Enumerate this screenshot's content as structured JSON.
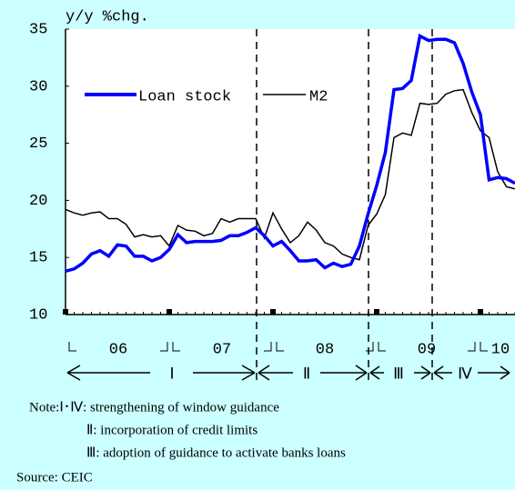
{
  "chart_data": {
    "type": "line",
    "y_label": "y/y %chg.",
    "categories": [
      null,
      null,
      null,
      null,
      null,
      null,
      null,
      null,
      null,
      null,
      null,
      null,
      null,
      null,
      null,
      null,
      null,
      null,
      null,
      null,
      null,
      null,
      null,
      null,
      null,
      null,
      null,
      null,
      null,
      null,
      null,
      null,
      null,
      null,
      null,
      null,
      null,
      null,
      null,
      null,
      null,
      null,
      null,
      null,
      null,
      null,
      null,
      null,
      null,
      null,
      null,
      null,
      null
    ],
    "year_labels": [
      "06",
      "07",
      "08",
      "09",
      "10"
    ],
    "phases": [
      "Ⅰ",
      "Ⅱ",
      "Ⅲ",
      "Ⅳ"
    ],
    "series": [
      {
        "name": "Loan stock",
        "color": "#0000ff",
        "values": [
          13.8,
          14.0,
          14.5,
          15.3,
          15.6,
          15.1,
          16.1,
          16.0,
          15.1,
          15.1,
          14.7,
          15.0,
          15.7,
          17.0,
          16.3,
          16.4,
          16.4,
          16.4,
          16.5,
          16.9,
          16.9,
          17.2,
          17.6,
          16.9,
          16.0,
          16.4,
          15.6,
          14.7,
          14.7,
          14.8,
          14.1,
          14.5,
          14.2,
          14.4,
          16.0,
          18.8,
          21.3,
          24.2,
          29.7,
          29.8,
          30.5,
          34.4,
          34.0,
          34.1,
          34.1,
          33.8,
          32.0,
          29.5,
          27.5,
          21.8,
          22.0,
          21.9,
          21.5
        ]
      },
      {
        "name": "M2",
        "color": "#000000",
        "values": [
          19.2,
          18.9,
          18.7,
          18.9,
          19.0,
          18.4,
          18.4,
          17.9,
          16.8,
          17.0,
          16.8,
          16.9,
          16.0,
          17.8,
          17.4,
          17.3,
          16.9,
          17.1,
          18.4,
          18.1,
          18.4,
          18.4,
          18.4,
          16.7,
          18.9,
          17.5,
          16.3,
          16.9,
          18.1,
          17.4,
          16.3,
          16.0,
          15.3,
          15.0,
          14.8,
          17.8,
          18.8,
          20.5,
          25.5,
          25.9,
          25.7,
          28.5,
          28.4,
          28.5,
          29.3,
          29.6,
          29.7,
          27.7,
          26.1,
          25.5,
          22.5,
          21.2,
          21.0
        ]
      }
    ],
    "ylim": [
      10,
      35
    ],
    "yticks": [
      10,
      15,
      20,
      25,
      30,
      35
    ],
    "notes": [
      "Note:Ⅰ･Ⅳ: strengthening of window guidance",
      "Ⅱ: incorporation of credit limits",
      "Ⅲ: adoption of guidance to activate banks loans"
    ],
    "source": "Source: CEIC"
  }
}
